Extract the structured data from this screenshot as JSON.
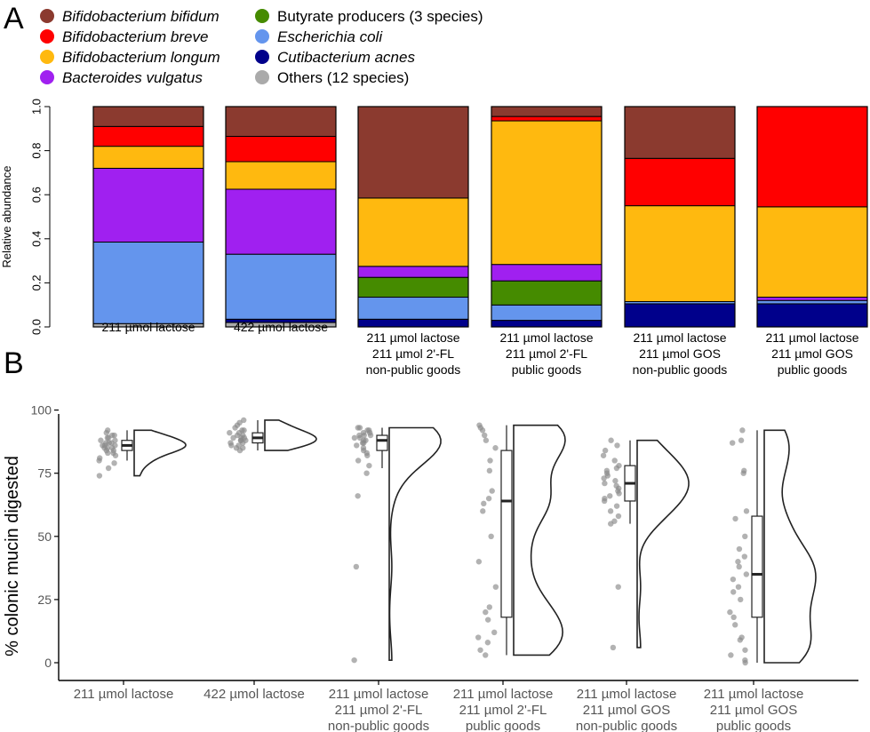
{
  "panel_a_letter": "A",
  "panel_b_letter": "B",
  "chart_data": [
    {
      "type": "bar",
      "stacked": true,
      "ylabel": "Relative abundance",
      "ylim": [
        0,
        1
      ],
      "yticks": [
        "0.0",
        "0.2",
        "0.4",
        "0.6",
        "0.8",
        "1.0"
      ],
      "legend_position": "top-left",
      "categories": [
        [
          "211 µmol lactose"
        ],
        [
          "422 µmol lactose"
        ],
        [
          "211 µmol lactose",
          "211 µmol 2'-FL",
          "non-public goods"
        ],
        [
          "211 µmol lactose",
          "211 µmol 2'-FL",
          "public goods"
        ],
        [
          "211 µmol lactose",
          "211 µmol GOS",
          "non-public goods"
        ],
        [
          "211 µmol lactose",
          "211 µmol GOS",
          "public goods"
        ]
      ],
      "series": [
        {
          "name": "Others (12 species)",
          "color": "#aaaaaa",
          "italic": false,
          "values": [
            0.015,
            0.02,
            0.0,
            0.0,
            0.0,
            0.0
          ]
        },
        {
          "name": "Cutibacterium acnes",
          "color": "#00008b",
          "italic": true,
          "values": [
            0.0,
            0.015,
            0.035,
            0.03,
            0.105,
            0.105
          ]
        },
        {
          "name": "Escherichia coli",
          "color": "#6495ed",
          "italic": true,
          "values": [
            0.37,
            0.295,
            0.1,
            0.07,
            0.01,
            0.015
          ]
        },
        {
          "name": "Butyrate producers (3 species)",
          "color": "#458b00",
          "italic": false,
          "values": [
            0.0,
            0.0,
            0.09,
            0.11,
            0.0,
            0.0
          ]
        },
        {
          "name": "Bacteroides vulgatus",
          "color": "#a020f0",
          "italic": true,
          "values": [
            0.335,
            0.295,
            0.05,
            0.075,
            0.0,
            0.015
          ]
        },
        {
          "name": "Bifidobacterium longum",
          "color": "#ffb90f",
          "italic": true,
          "values": [
            0.1,
            0.125,
            0.31,
            0.655,
            0.435,
            0.41
          ]
        },
        {
          "name": "Bifidobacterium breve",
          "color": "#ff0000",
          "italic": true,
          "values": [
            0.09,
            0.115,
            0.0,
            0.02,
            0.215,
            0.455
          ]
        },
        {
          "name": "Bifidobacterium bifidum",
          "color": "#8b3a2f",
          "italic": true,
          "values": [
            0.09,
            0.135,
            0.415,
            0.045,
            0.235,
            0.0
          ]
        }
      ],
      "legend_order": [
        "Bifidobacterium bifidum",
        "Bifidobacterium breve",
        "Bifidobacterium longum",
        "Bacteroides vulgatus",
        "Butyrate producers (3 species)",
        "Escherichia coli",
        "Cutibacterium acnes",
        "Others (12 species)"
      ]
    },
    {
      "type": "scatter",
      "subtype": "raincloud (half-violin + boxplot + jittered points)",
      "ylabel": "% colonic mucin digested",
      "ylim": [
        0,
        100
      ],
      "yticks": [
        "0",
        "25",
        "50",
        "75",
        "100"
      ],
      "categories": [
        [
          "211 µmol lactose"
        ],
        [
          "422 µmol lactose"
        ],
        [
          "211 µmol lactose",
          "211 µmol 2'-FL",
          "non-public goods"
        ],
        [
          "211 µmol lactose",
          "211 µmol 2'-FL",
          "public goods"
        ],
        [
          "211 µmol lactose",
          "211 µmol GOS",
          "non-public goods"
        ],
        [
          "211 µmol lactose",
          "211 µmol GOS",
          "public goods"
        ]
      ],
      "groups": [
        {
          "box": {
            "q1": 84,
            "median": 86,
            "q3": 88,
            "whisker_low": 80,
            "whisker_high": 92
          },
          "points": [
            92,
            91,
            90,
            90,
            89,
            89,
            88,
            88,
            87,
            87,
            87,
            86,
            86,
            86,
            85,
            85,
            85,
            84,
            84,
            83,
            83,
            82,
            81,
            80,
            79,
            77,
            74
          ],
          "density_range": [
            74,
            92
          ]
        },
        {
          "box": {
            "q1": 87,
            "median": 89,
            "q3": 91,
            "whisker_low": 84,
            "whisker_high": 96
          },
          "points": [
            96,
            95,
            94,
            93,
            92,
            92,
            91,
            91,
            90,
            90,
            89,
            89,
            89,
            88,
            88,
            88,
            87,
            87,
            86,
            86,
            85,
            85,
            84
          ],
          "density_range": [
            84,
            96
          ]
        },
        {
          "box": {
            "q1": 84,
            "median": 88,
            "q3": 90,
            "whisker_low": 77,
            "whisker_high": 93
          },
          "points": [
            93,
            93,
            92,
            92,
            91,
            91,
            90,
            90,
            90,
            89,
            89,
            88,
            88,
            87,
            87,
            86,
            85,
            84,
            83,
            82,
            80,
            78,
            75,
            66,
            38,
            1
          ],
          "density_range": [
            1,
            93
          ]
        },
        {
          "box": {
            "q1": 18,
            "median": 64,
            "q3": 84,
            "whisker_low": 3,
            "whisker_high": 94
          },
          "points": [
            94,
            93,
            92,
            90,
            88,
            85,
            80,
            76,
            68,
            65,
            63,
            60,
            50,
            40,
            30,
            22,
            20,
            17,
            12,
            10,
            8,
            5,
            3
          ],
          "density_range": [
            3,
            94
          ]
        },
        {
          "box": {
            "q1": 64,
            "median": 71,
            "q3": 78,
            "whisker_low": 55,
            "whisker_high": 88
          },
          "points": [
            88,
            86,
            84,
            82,
            80,
            78,
            77,
            76,
            75,
            74,
            73,
            72,
            71,
            70,
            69,
            68,
            67,
            66,
            65,
            64,
            62,
            60,
            58,
            56,
            55,
            30,
            6
          ],
          "density_range": [
            6,
            88
          ]
        },
        {
          "box": {
            "q1": 18,
            "median": 35,
            "q3": 58,
            "whisker_low": 0,
            "whisker_high": 92
          },
          "points": [
            92,
            88,
            87,
            76,
            75,
            60,
            57,
            50,
            45,
            42,
            40,
            38,
            35,
            33,
            30,
            28,
            25,
            20,
            18,
            15,
            10,
            9,
            5,
            3,
            1,
            0
          ],
          "density_range": [
            0,
            92
          ]
        }
      ]
    }
  ]
}
